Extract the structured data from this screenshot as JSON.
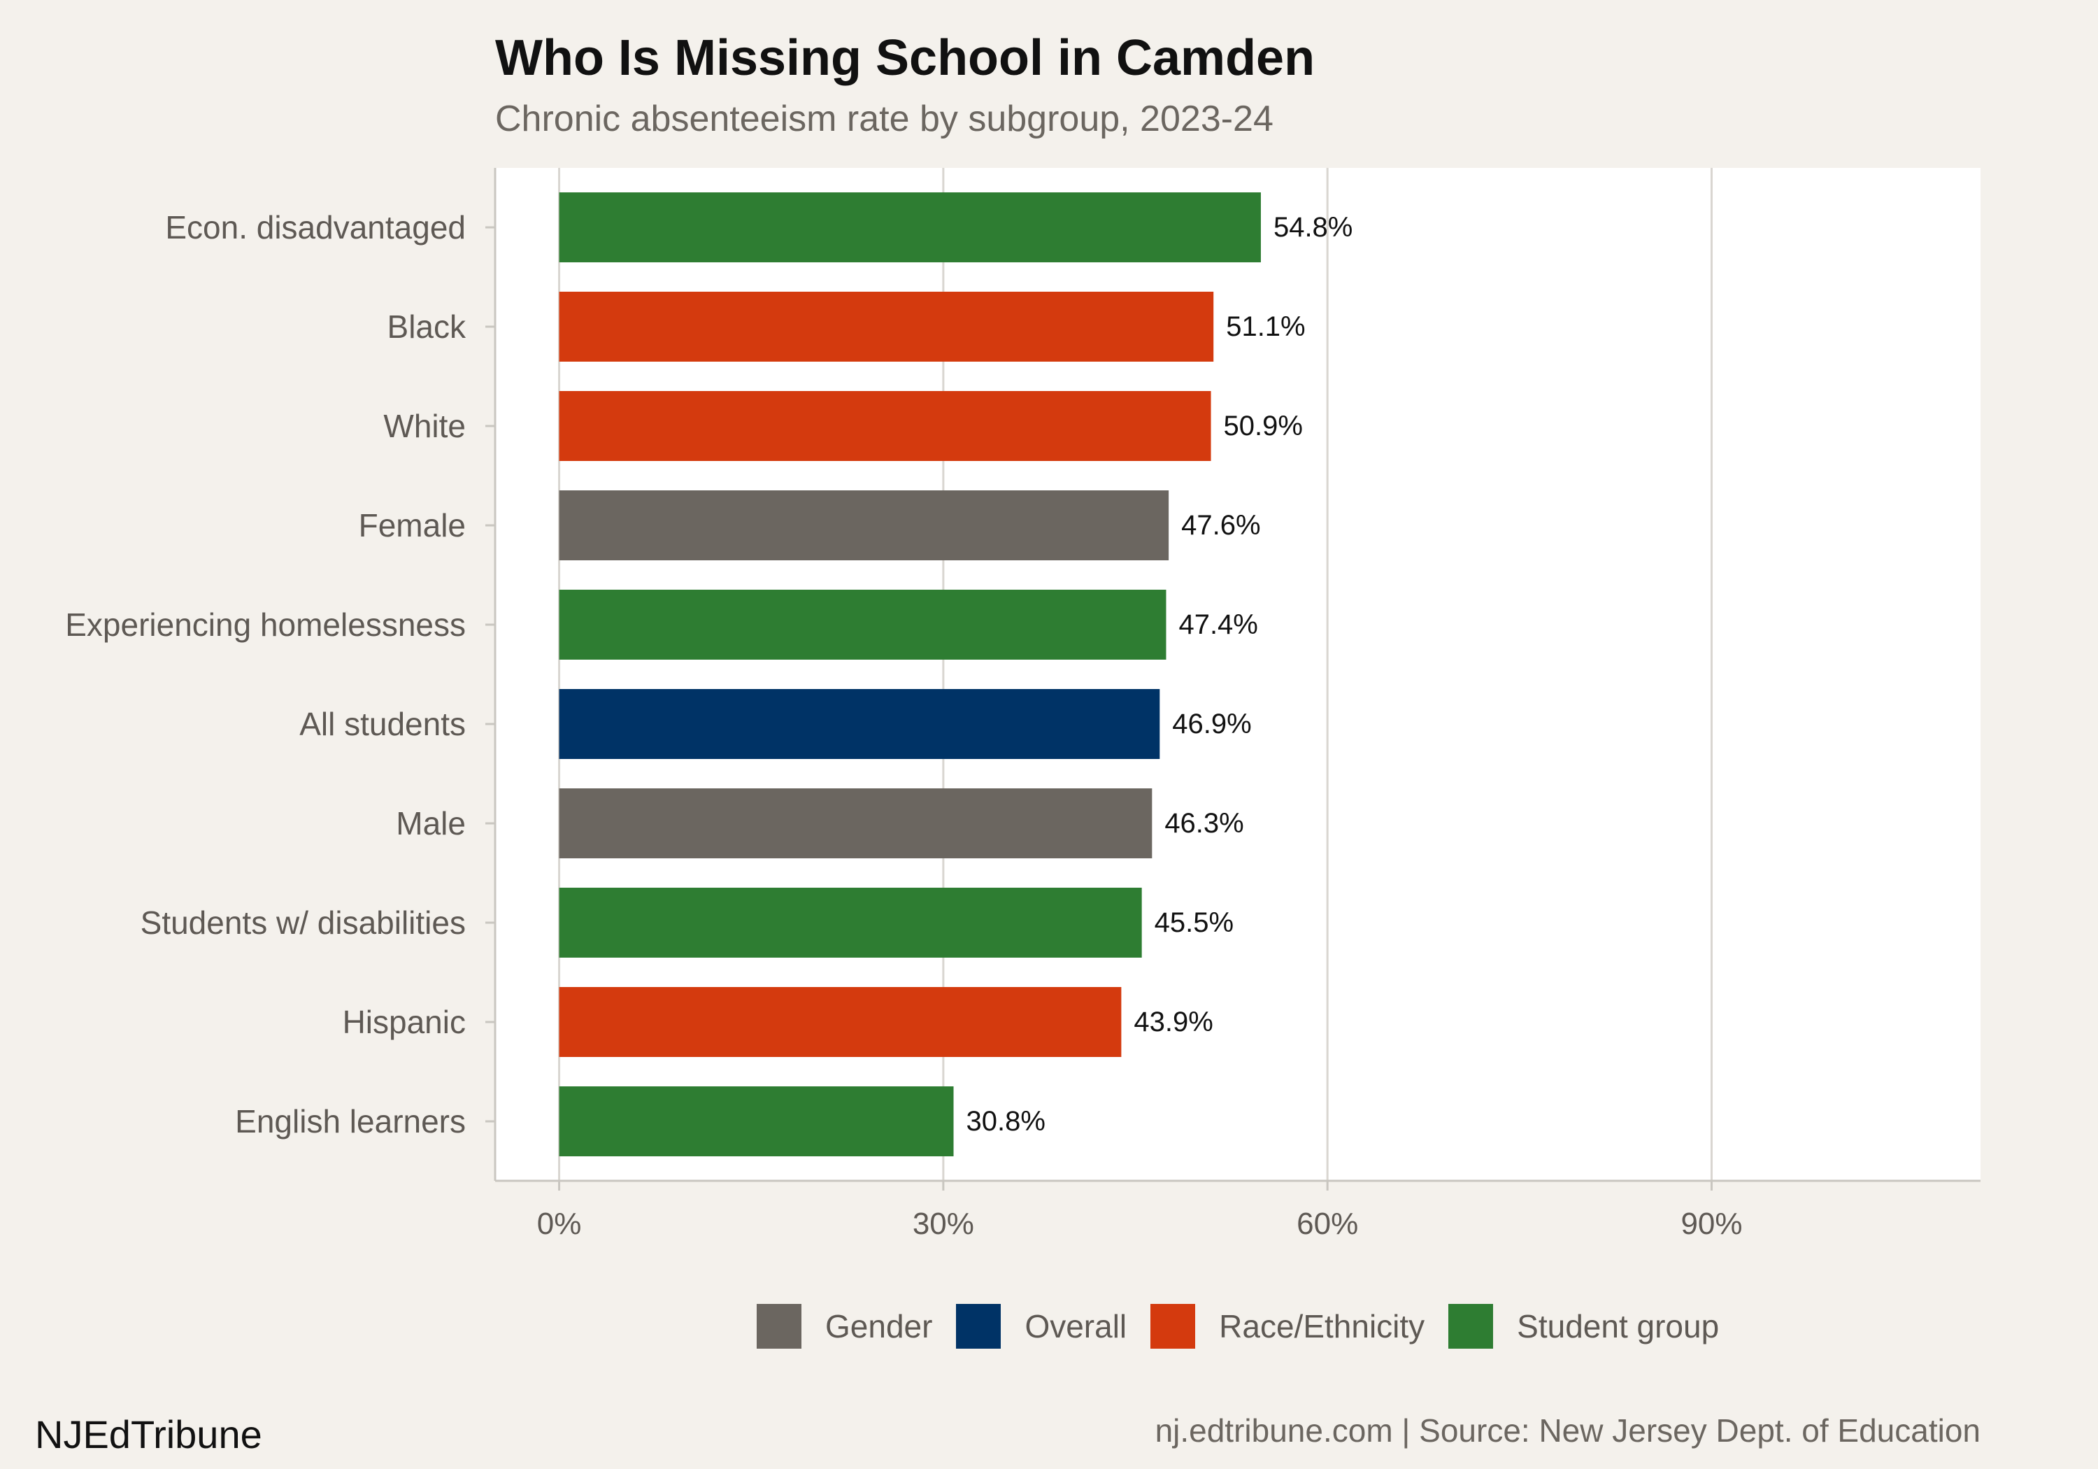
{
  "chart_data": {
    "type": "bar",
    "orientation": "horizontal",
    "title": "Who Is Missing School in Camden",
    "subtitle": "Chronic absenteeism rate by subgroup, 2023-24",
    "xlim": [
      -5,
      111
    ],
    "xticks": [
      0,
      30,
      60,
      90
    ],
    "xtick_labels": [
      "0%",
      "30%",
      "60%",
      "90%"
    ],
    "grid": true,
    "legend_position": "bottom",
    "legend": [
      {
        "name": "Gender",
        "color": "#6b6660"
      },
      {
        "name": "Overall",
        "color": "#003366"
      },
      {
        "name": "Race/Ethnicity",
        "color": "#d43a0e"
      },
      {
        "name": "Student group",
        "color": "#2e7d32"
      }
    ],
    "bars": [
      {
        "category": "Econ. disadvantaged",
        "value": 54.8,
        "label": "54.8%",
        "group": "Student group"
      },
      {
        "category": "Black",
        "value": 51.1,
        "label": "51.1%",
        "group": "Race/Ethnicity"
      },
      {
        "category": "White",
        "value": 50.9,
        "label": "50.9%",
        "group": "Race/Ethnicity"
      },
      {
        "category": "Female",
        "value": 47.6,
        "label": "47.6%",
        "group": "Gender"
      },
      {
        "category": "Experiencing homelessness",
        "value": 47.4,
        "label": "47.4%",
        "group": "Student group"
      },
      {
        "category": "All students",
        "value": 46.9,
        "label": "46.9%",
        "group": "Overall"
      },
      {
        "category": "Male",
        "value": 46.3,
        "label": "46.3%",
        "group": "Gender"
      },
      {
        "category": "Students w/ disabilities",
        "value": 45.5,
        "label": "45.5%",
        "group": "Student group"
      },
      {
        "category": "Hispanic",
        "value": 43.9,
        "label": "43.9%",
        "group": "Race/Ethnicity"
      },
      {
        "category": "English learners",
        "value": 30.8,
        "label": "30.8%",
        "group": "Student group"
      }
    ]
  },
  "footer": {
    "brand": "NJEdTribune",
    "source": "nj.edtribune.com | Source: New Jersey Dept. of Education"
  }
}
